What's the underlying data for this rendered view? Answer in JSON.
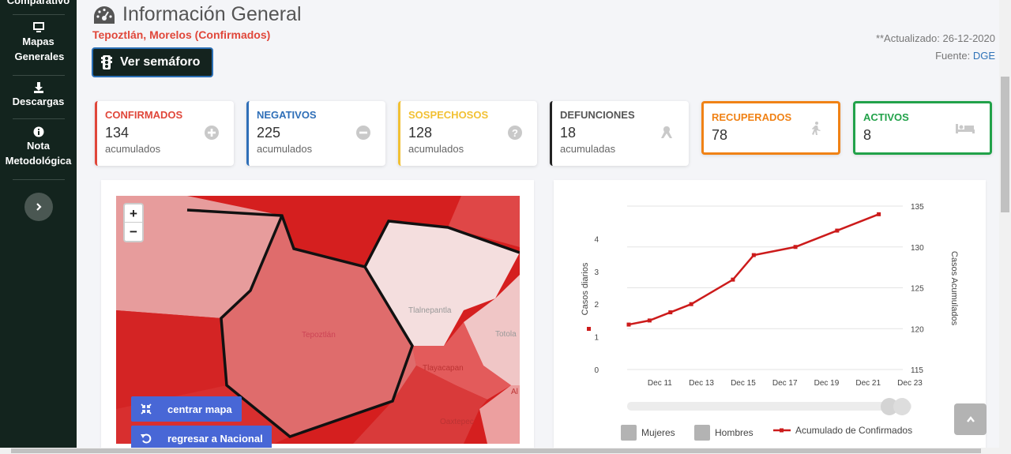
{
  "sidebar": {
    "items": [
      {
        "label": "Comparativo",
        "icon": "chart-icon"
      },
      {
        "label": "Mapas Generales",
        "icon": "monitor-icon"
      },
      {
        "label": "Descargas",
        "icon": "download-icon"
      },
      {
        "label": "Nota Metodológica",
        "icon": "info-icon"
      }
    ],
    "toggle_icon": "chevron-right-icon"
  },
  "header": {
    "title": "Información General",
    "subtitle": "Tepoztlán, Morelos (Confirmados)",
    "updated": "**Actualizado: 26-12-2020",
    "source_label": "Fuente:",
    "source_link": "DGE",
    "semaforo_button": "Ver semáforo"
  },
  "cards": [
    {
      "title": "CONFIRMADOS",
      "value": "134",
      "sub": "acumulados",
      "color": "#e0473a",
      "icon": "plus-circle-icon"
    },
    {
      "title": "NEGATIVOS",
      "value": "225",
      "sub": "acumulados",
      "color": "#2f6fb8",
      "icon": "minus-circle-icon"
    },
    {
      "title": "SOSPECHOSOS",
      "value": "128",
      "sub": "acumulados",
      "color": "#f2c134",
      "icon": "question-circle-icon"
    },
    {
      "title": "DEFUNCIONES",
      "value": "18",
      "sub": "acumuladas",
      "color": "#222222",
      "icon": "ribbon-icon"
    },
    {
      "title": "RECUPERADOS",
      "value": "78",
      "sub": "",
      "color": "#f08216",
      "icon": "walking-icon"
    },
    {
      "title": "ACTIVOS",
      "value": "8",
      "sub": "",
      "color": "#22a24a",
      "icon": "bed-icon"
    }
  ],
  "map": {
    "labels": [
      "Tlalnepantla",
      "Totola",
      "Tepoztlán",
      "Tlayacapan",
      "Oaxtepec",
      "Al"
    ],
    "zoom_in": "+",
    "zoom_out": "−",
    "center_button": "centrar mapa",
    "national_button": "regresar a Nacional"
  },
  "chart_data": {
    "type": "line",
    "x": [
      "Dec 10",
      "Dec 11",
      "Dec 12",
      "Dec 13",
      "Dec 14",
      "Dec 15",
      "Dec 16",
      "Dec 17",
      "Dec 18",
      "Dec 19",
      "Dec 20",
      "Dec 21",
      "Dec 22",
      "Dec 23"
    ],
    "x_tick_labels": [
      "Dec 11",
      "Dec 13",
      "Dec 15",
      "Dec 17",
      "Dec 19",
      "Dec 21",
      "Dec 23"
    ],
    "series": [
      {
        "name": "Acumulado de Confirmados",
        "axis": "right",
        "color": "#cc1b1b",
        "points": [
          [
            "Dec 10",
            120.5
          ],
          [
            "Dec 11",
            121
          ],
          [
            "Dec 12",
            122
          ],
          [
            "Dec 13",
            123
          ],
          [
            "Dec 15",
            126
          ],
          [
            "Dec 16",
            129
          ],
          [
            "Dec 18",
            130
          ],
          [
            "Dec 20",
            132
          ],
          [
            "Dec 22",
            134
          ]
        ]
      },
      {
        "name": "Mujeres",
        "axis": "left",
        "color": "#b3b3b3",
        "points": []
      },
      {
        "name": "Hombres",
        "axis": "left",
        "color": "#b3b3b3",
        "points": []
      }
    ],
    "y_left": {
      "label": "Casos diarios",
      "ticks": [
        0,
        1,
        2,
        3,
        4
      ],
      "range": [
        0,
        5
      ]
    },
    "y_right": {
      "label": "Casos Acumulados",
      "ticks": [
        115,
        120,
        125,
        130,
        135
      ],
      "range": [
        115,
        135
      ]
    },
    "legend_position": "bottom"
  },
  "colors": {
    "sidebar_bg": "#13241e",
    "accent_blue": "#4867d6"
  }
}
